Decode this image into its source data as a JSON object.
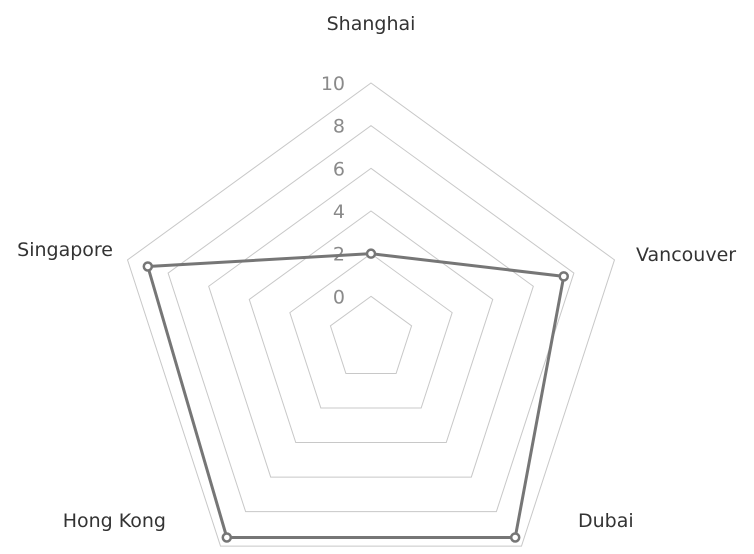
{
  "chart_data": {
    "type": "radar",
    "categories": [
      "Shanghai",
      "Vancouver",
      "Dubai",
      "Hong Kong",
      "Singapore"
    ],
    "ticks": [
      "0",
      "2",
      "4",
      "6",
      "8",
      "10"
    ],
    "range": [
      -2,
      10
    ],
    "grid": true,
    "series": [
      {
        "values": [
          2,
          7.5,
          9.5,
          9.5,
          9
        ],
        "color": "#767676"
      }
    ]
  }
}
